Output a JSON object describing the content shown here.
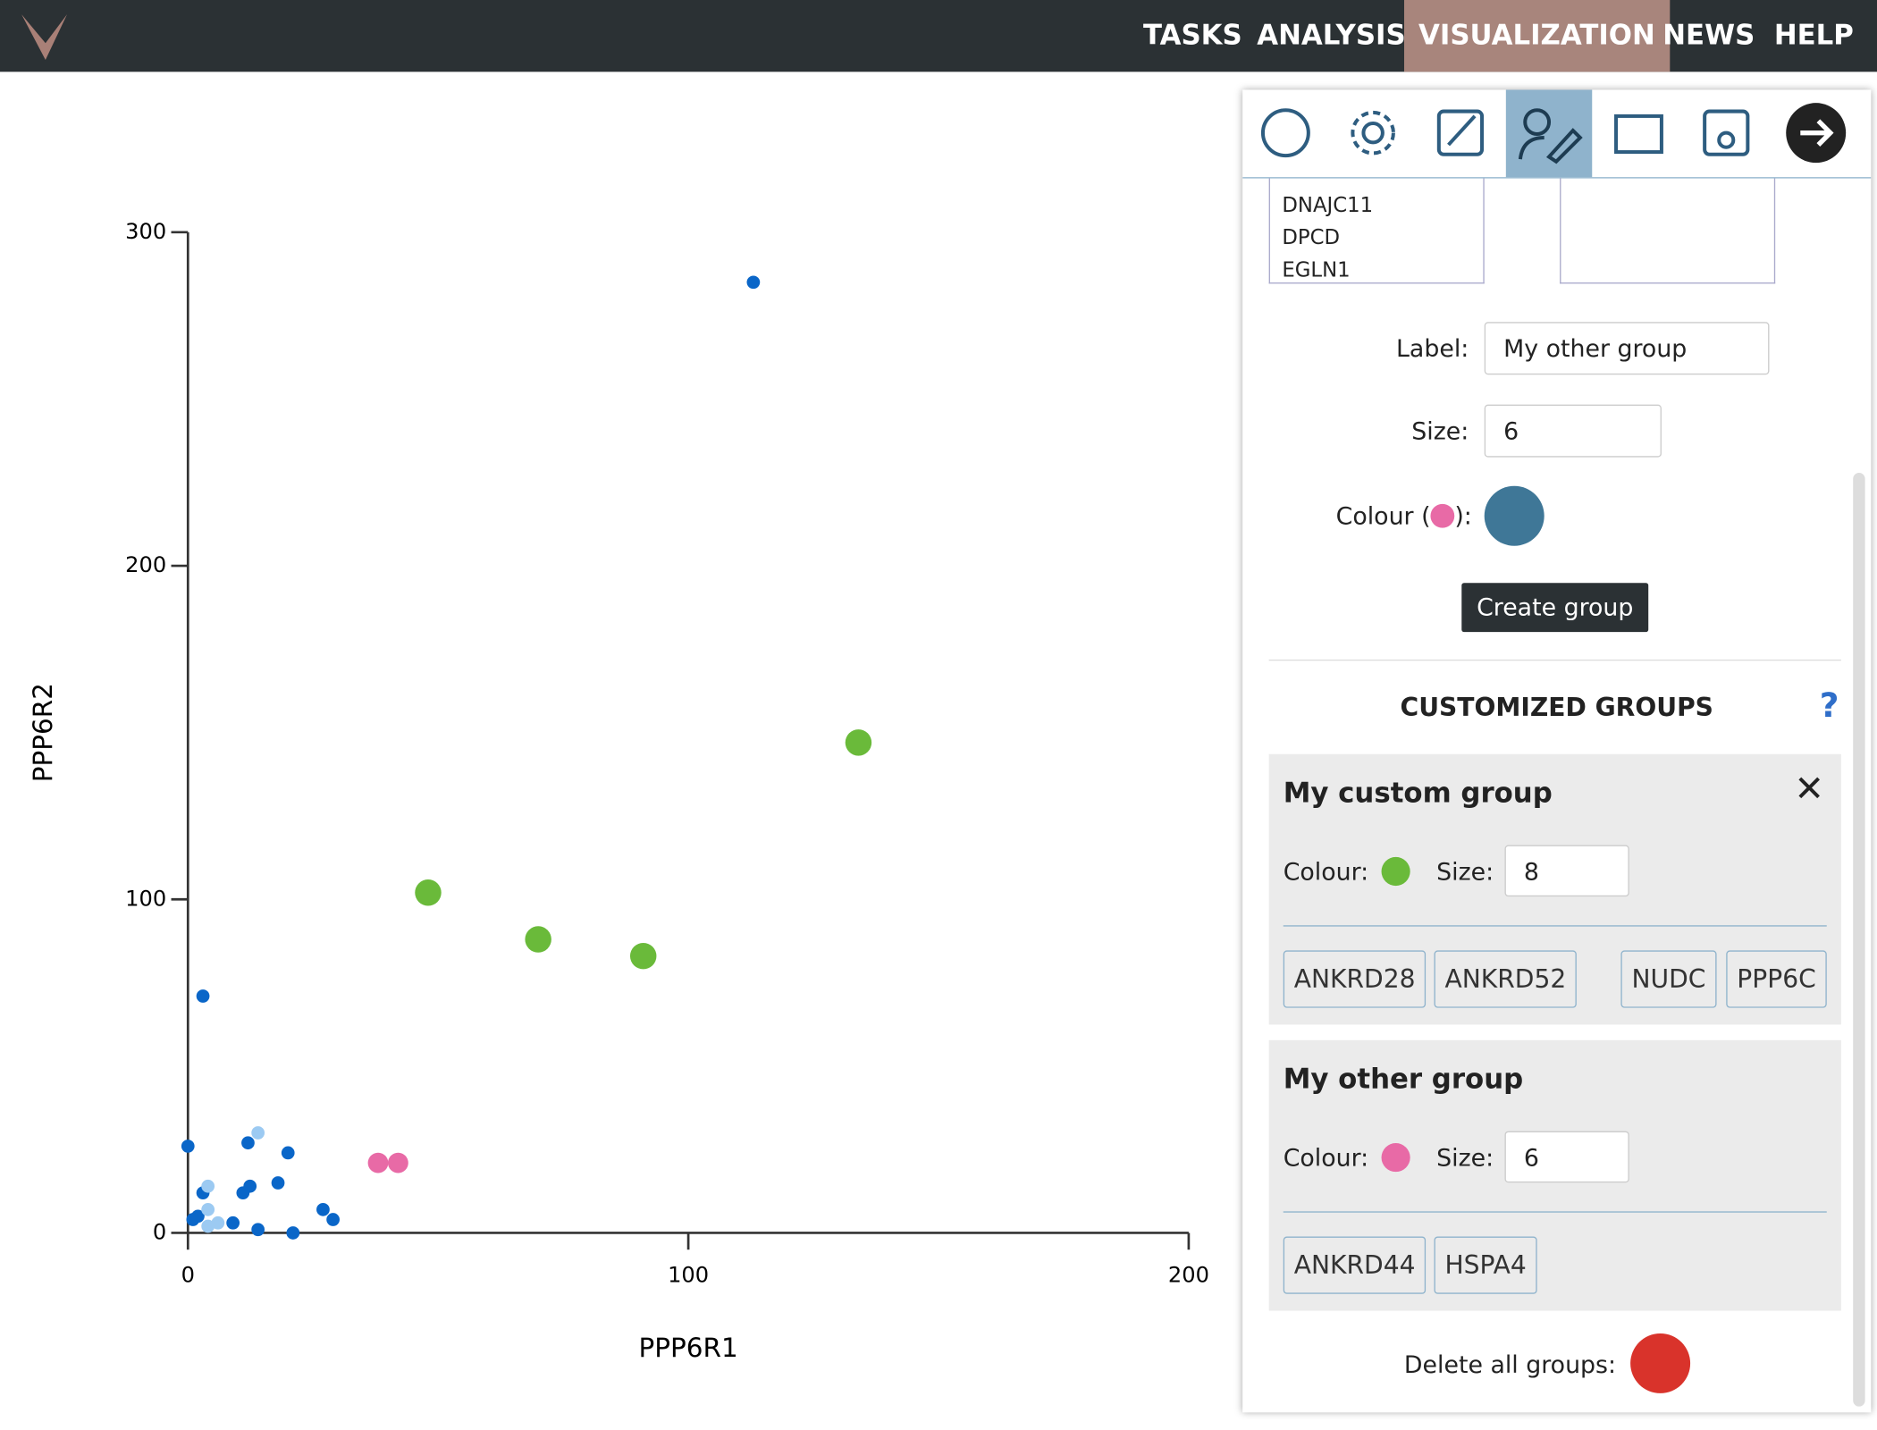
{
  "nav": {
    "items": [
      "TASKS",
      "ANALYSIS",
      "VISUALIZATION",
      "NEWS",
      "HELP"
    ],
    "active": "VISUALIZATION"
  },
  "chart_data": {
    "type": "scatter",
    "x_label": "PPP6R1",
    "y_label": "PPP6R2",
    "xlim": [
      0,
      200
    ],
    "xticks": [
      0,
      100,
      200
    ],
    "ylim": [
      0,
      300
    ],
    "yticks": [
      0,
      100,
      200,
      300
    ],
    "series": [
      {
        "color": "#0a66c8",
        "x": [
          113,
          3,
          0,
          12,
          20,
          3,
          12.4,
          11,
          18,
          27,
          29,
          9,
          14,
          21,
          2,
          1
        ],
        "values": [
          285,
          71,
          26,
          27,
          24,
          12,
          14,
          12,
          15,
          7,
          4,
          3,
          1,
          0,
          5,
          4
        ]
      },
      {
        "color": "#9ccaf2",
        "x": [
          14,
          4,
          4,
          6,
          4
        ],
        "values": [
          30,
          14,
          7,
          3,
          2
        ]
      },
      {
        "name": "My custom group",
        "color": "#6aba3a",
        "x": [
          48,
          70,
          91,
          134
        ],
        "values": [
          102,
          88,
          83,
          147
        ]
      },
      {
        "name": "My other group",
        "color": "#e86aa6",
        "x": [
          38,
          42
        ],
        "values": [
          21,
          21
        ]
      }
    ]
  },
  "panel": {
    "list": [
      "DNAJC11",
      "DPCD",
      "EGLN1"
    ],
    "label_field": "Label:",
    "label_value": "My other group",
    "size_field": "Size:",
    "size_value": "6",
    "colour_open": "Colour (",
    "colour_close": "):",
    "create_button": "Create group",
    "groups_heading": "CUSTOMIZED GROUPS",
    "help": "?",
    "groups": [
      {
        "name": "My custom group",
        "colour_label": "Colour:",
        "size_label": "Size:",
        "size": "8",
        "color": "#6aba3a",
        "genes": [
          "ANKRD28",
          "ANKRD52",
          "NUDC",
          "PPP6C"
        ]
      },
      {
        "name": "My other group",
        "colour_label": "Colour:",
        "size_label": "Size:",
        "size": "6",
        "color": "#e86aa6",
        "genes": [
          "ANKRD44",
          "HSPA4"
        ]
      }
    ],
    "delete_all": "Delete all groups:"
  }
}
